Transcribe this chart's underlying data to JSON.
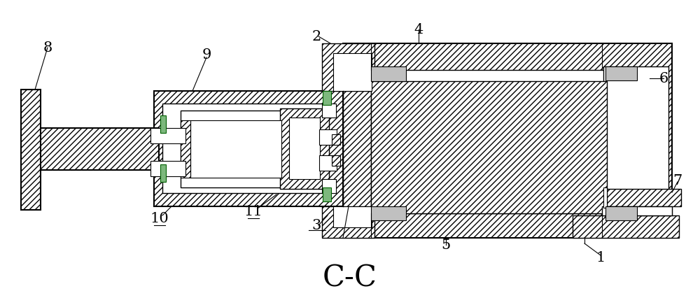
{
  "title": "C-C",
  "bg_color": "#ffffff",
  "line_color": "#000000",
  "fig_width": 10.0,
  "fig_height": 4.26,
  "dpi": 100
}
